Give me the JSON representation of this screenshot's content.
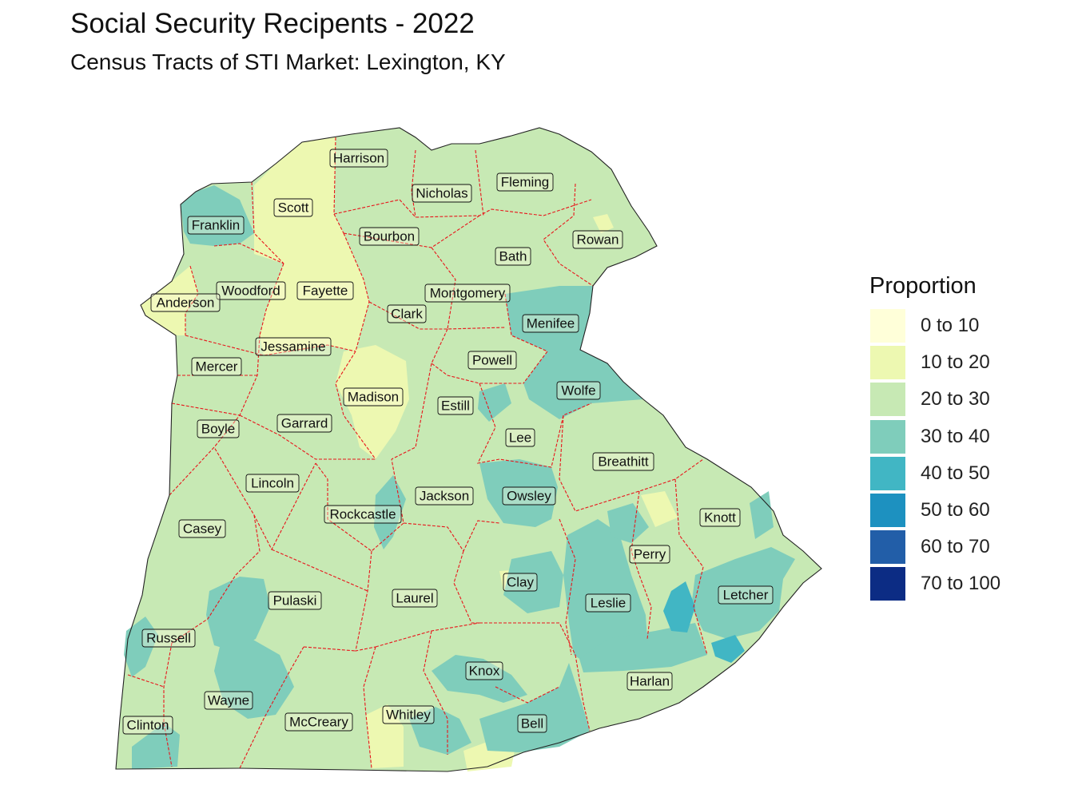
{
  "title": "Social Security Recipents - 2022",
  "subtitle": "Census Tracts of STI Market: Lexington, KY",
  "legend": {
    "title": "Proportion",
    "items": [
      {
        "label": "0 to 10",
        "color": "#FFFFD9"
      },
      {
        "label": "10 to 20",
        "color": "#EDF8B1"
      },
      {
        "label": "20 to 30",
        "color": "#C7E9B4"
      },
      {
        "label": "30 to 40",
        "color": "#7FCDBB"
      },
      {
        "label": "40 to 50",
        "color": "#41B6C4"
      },
      {
        "label": "50 to 60",
        "color": "#1D91C0"
      },
      {
        "label": "60 to 70",
        "color": "#225EA8"
      },
      {
        "label": "70 to 100",
        "color": "#0C2C84"
      }
    ]
  },
  "county_border_color": "#E8151B",
  "counties": [
    {
      "name": "Harrison",
      "class": "20 to 30"
    },
    {
      "name": "Nicholas",
      "class": "20 to 30"
    },
    {
      "name": "Fleming",
      "class": "20 to 30"
    },
    {
      "name": "Scott",
      "class": "10 to 20"
    },
    {
      "name": "Franklin",
      "class": "30 to 40"
    },
    {
      "name": "Bourbon",
      "class": "20 to 30"
    },
    {
      "name": "Rowan",
      "class": "20 to 30"
    },
    {
      "name": "Bath",
      "class": "20 to 30"
    },
    {
      "name": "Woodford",
      "class": "20 to 30"
    },
    {
      "name": "Fayette",
      "class": "10 to 20"
    },
    {
      "name": "Anderson",
      "class": "10 to 20"
    },
    {
      "name": "Montgomery",
      "class": "20 to 30"
    },
    {
      "name": "Clark",
      "class": "20 to 30"
    },
    {
      "name": "Menifee",
      "class": "30 to 40"
    },
    {
      "name": "Jessamine",
      "class": "10 to 20"
    },
    {
      "name": "Mercer",
      "class": "20 to 30"
    },
    {
      "name": "Powell",
      "class": "20 to 30"
    },
    {
      "name": "Wolfe",
      "class": "30 to 40"
    },
    {
      "name": "Madison",
      "class": "10 to 20"
    },
    {
      "name": "Estill",
      "class": "20 to 30"
    },
    {
      "name": "Boyle",
      "class": "20 to 30"
    },
    {
      "name": "Garrard",
      "class": "20 to 30"
    },
    {
      "name": "Lee",
      "class": "20 to 30"
    },
    {
      "name": "Breathitt",
      "class": "20 to 30"
    },
    {
      "name": "Lincoln",
      "class": "20 to 30"
    },
    {
      "name": "Jackson",
      "class": "20 to 30"
    },
    {
      "name": "Rockcastle",
      "class": "20 to 30"
    },
    {
      "name": "Owsley",
      "class": "30 to 40"
    },
    {
      "name": "Knott",
      "class": "20 to 30"
    },
    {
      "name": "Casey",
      "class": "20 to 30"
    },
    {
      "name": "Perry",
      "class": "20 to 30"
    },
    {
      "name": "Clay",
      "class": "20 to 30"
    },
    {
      "name": "Pulaski",
      "class": "20 to 30"
    },
    {
      "name": "Laurel",
      "class": "20 to 30"
    },
    {
      "name": "Leslie",
      "class": "30 to 40"
    },
    {
      "name": "Letcher",
      "class": "30 to 40"
    },
    {
      "name": "Russell",
      "class": "20 to 30"
    },
    {
      "name": "Knox",
      "class": "20 to 30"
    },
    {
      "name": "Harlan",
      "class": "20 to 30"
    },
    {
      "name": "Wayne",
      "class": "20 to 30"
    },
    {
      "name": "Whitley",
      "class": "20 to 30"
    },
    {
      "name": "Bell",
      "class": "30 to 40"
    },
    {
      "name": "McCreary",
      "class": "20 to 30"
    },
    {
      "name": "Clinton",
      "class": "20 to 30"
    }
  ]
}
